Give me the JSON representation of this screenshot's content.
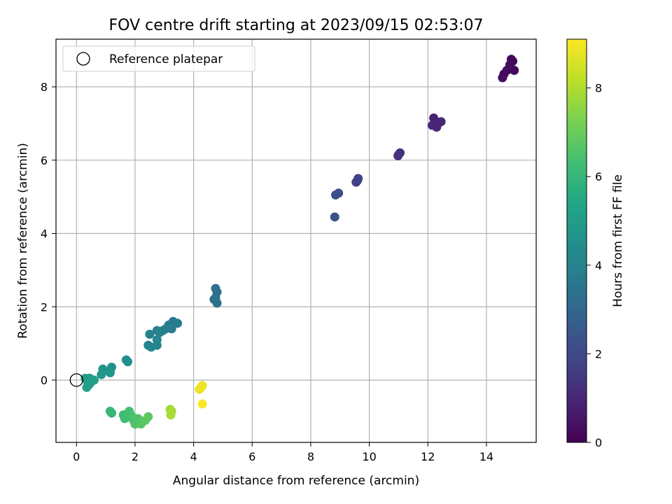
{
  "chart_data": {
    "type": "scatter",
    "title": "FOV centre drift starting at 2023/09/15 02:53:07",
    "xlabel": "Angular distance from reference (arcmin)",
    "ylabel": "Rotation from reference (arcmin)",
    "xlim": [
      -0.7,
      15.7
    ],
    "ylim": [
      -1.7,
      9.3
    ],
    "xticks": [
      "0",
      "2",
      "4",
      "6",
      "8",
      "10",
      "12",
      "14"
    ],
    "yticks": [
      "0",
      "2",
      "4",
      "6",
      "8"
    ],
    "grid": true,
    "legend": {
      "placement": "top-left",
      "entries": [
        "Reference platepar"
      ]
    },
    "reference_point": {
      "x": 0,
      "y": 0
    },
    "colorbar": {
      "label": "Hours from first FF file",
      "colormap": "viridis",
      "range": [
        0,
        9.1
      ],
      "ticks": [
        "0",
        "2",
        "4",
        "6",
        "8"
      ]
    },
    "series": [
      {
        "x": [
          14.6,
          14.7,
          14.55,
          14.9,
          14.85,
          14.95,
          14.8
        ],
        "y": [
          8.35,
          8.45,
          8.25,
          8.7,
          8.75,
          8.45,
          8.6
        ],
        "c": [
          0.2,
          0.25,
          0.3,
          0.1,
          0.15,
          0.2,
          0.25
        ]
      },
      {
        "x": [
          12.2,
          12.25,
          12.35,
          12.15,
          12.45,
          12.3
        ],
        "y": [
          7.15,
          6.95,
          7.0,
          6.95,
          7.05,
          6.9
        ],
        "c": [
          0.85,
          0.9,
          0.95,
          1.0,
          1.0,
          0.95
        ]
      },
      {
        "x": [
          11.0,
          11.05,
          10.98
        ],
        "y": [
          6.15,
          6.2,
          6.12
        ],
        "c": [
          1.25,
          1.3,
          1.3
        ]
      },
      {
        "x": [
          9.55,
          9.6,
          9.62
        ],
        "y": [
          5.4,
          5.45,
          5.5
        ],
        "c": [
          1.75,
          1.8,
          1.8
        ]
      },
      {
        "x": [
          8.85,
          8.95,
          8.82
        ],
        "y": [
          5.05,
          5.1,
          4.45
        ],
        "c": [
          2.15,
          2.2,
          2.3
        ]
      },
      {
        "x": [
          4.75,
          4.8,
          4.7,
          4.8,
          4.75
        ],
        "y": [
          2.5,
          2.4,
          2.2,
          2.1,
          2.25
        ],
        "c": [
          3.3,
          3.35,
          3.35,
          3.4,
          3.4
        ]
      },
      {
        "x": [
          3.3,
          3.45,
          3.15,
          3.25,
          2.95,
          3.05,
          2.75,
          2.85,
          2.5,
          2.45,
          2.55,
          2.75,
          2.75
        ],
        "y": [
          1.6,
          1.55,
          1.5,
          1.4,
          1.35,
          1.4,
          1.35,
          1.3,
          1.25,
          0.95,
          0.9,
          0.95,
          1.1
        ],
        "c": [
          3.7,
          3.75,
          3.8,
          3.85,
          3.9,
          3.9,
          3.95,
          3.95,
          4.0,
          4.05,
          4.1,
          4.1,
          4.15
        ]
      },
      {
        "x": [
          1.7,
          1.75,
          1.2,
          1.15,
          0.9,
          0.85,
          0.55,
          0.45,
          0.35,
          0.4,
          0.3,
          0.5,
          0.45,
          0.35,
          0.6
        ],
        "y": [
          0.55,
          0.5,
          0.35,
          0.2,
          0.3,
          0.15,
          0.0,
          0.05,
          0.0,
          -0.15,
          0.05,
          -0.05,
          -0.1,
          -0.2,
          0.0
        ],
        "c": [
          4.45,
          4.5,
          4.6,
          4.65,
          4.7,
          4.75,
          4.85,
          4.9,
          4.95,
          5.0,
          5.0,
          5.05,
          5.05,
          5.1,
          5.1
        ]
      },
      {
        "x": [
          1.15,
          1.2,
          1.6,
          1.65,
          1.8,
          1.85,
          1.95,
          2.0,
          2.1,
          2.2,
          2.35,
          2.45,
          1.75,
          1.9,
          2.05
        ],
        "y": [
          -0.85,
          -0.9,
          -0.95,
          -1.05,
          -0.85,
          -0.95,
          -1.1,
          -1.2,
          -1.05,
          -1.2,
          -1.1,
          -1.0,
          -1.0,
          -1.0,
          -1.1
        ],
        "c": [
          6.0,
          6.05,
          6.2,
          6.25,
          6.35,
          6.4,
          6.5,
          6.55,
          6.6,
          6.7,
          6.75,
          6.8,
          6.3,
          6.45,
          6.55
        ]
      },
      {
        "x": [
          3.2,
          3.25,
          3.22
        ],
        "y": [
          -0.8,
          -0.85,
          -0.95
        ],
        "c": [
          7.8,
          7.85,
          7.9
        ]
      },
      {
        "x": [
          4.2,
          4.3,
          4.25,
          4.3
        ],
        "y": [
          -0.25,
          -0.15,
          -0.2,
          -0.65
        ],
        "c": [
          8.8,
          8.85,
          8.9,
          9.05
        ]
      }
    ]
  }
}
